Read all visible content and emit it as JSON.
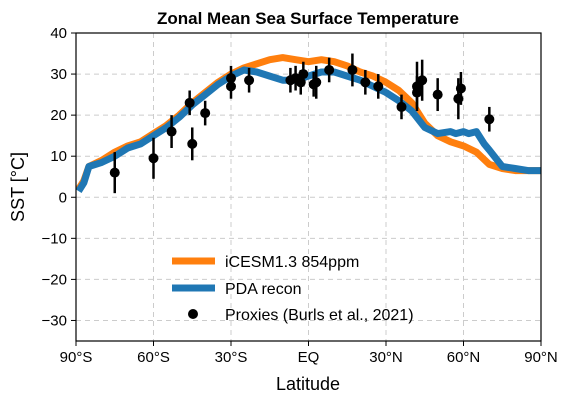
{
  "chart_data": {
    "type": "line",
    "title": "Zonal Mean Sea Surface Temperature",
    "xlabel": "Latitude",
    "ylabel": "SST [°C]",
    "xlim": [
      -90,
      90
    ],
    "ylim": [
      -35,
      40
    ],
    "x_ticks": [
      -90,
      -60,
      -30,
      0,
      30,
      60,
      90
    ],
    "x_tick_labels": [
      "90°S",
      "60°S",
      "30°S",
      "EQ",
      "30°N",
      "60°N",
      "90°N"
    ],
    "y_ticks": [
      -30,
      -20,
      -10,
      0,
      10,
      20,
      30,
      40
    ],
    "y_tick_labels": [
      "−30",
      "−20",
      "−10",
      "0",
      "10",
      "20",
      "30",
      "40"
    ],
    "grid": true,
    "legend_position": "lower-center",
    "series": [
      {
        "name": "iCESM1.3 854ppm",
        "color": "#ff7f0e",
        "x": [
          -89,
          -87,
          -85,
          -80,
          -75,
          -70,
          -65,
          -60,
          -55,
          -50,
          -45,
          -40,
          -35,
          -30,
          -25,
          -20,
          -15,
          -10,
          -5,
          0,
          5,
          10,
          15,
          20,
          25,
          30,
          35,
          40,
          45,
          50,
          55,
          60,
          65,
          70,
          75,
          80,
          85,
          90
        ],
        "y": [
          2,
          4,
          7.5,
          9,
          11,
          12.5,
          13.5,
          15.5,
          17.5,
          20,
          23,
          25.5,
          28,
          30,
          31.5,
          32.5,
          33.5,
          34,
          33.5,
          33,
          33.5,
          33,
          32,
          30.5,
          29.5,
          28,
          26,
          23,
          18,
          15,
          13.5,
          12.5,
          11,
          8,
          7,
          6.5,
          6.5,
          6.5
        ]
      },
      {
        "name": "PDA recon",
        "color": "#1f77b4",
        "x": [
          -89,
          -87,
          -85,
          -80,
          -75,
          -70,
          -65,
          -60,
          -55,
          -50,
          -45,
          -40,
          -35,
          -30,
          -25,
          -20,
          -15,
          -10,
          -5,
          0,
          5,
          10,
          15,
          20,
          25,
          30,
          35,
          40,
          45,
          50,
          55,
          57,
          60,
          62,
          65,
          68,
          70,
          75,
          80,
          85,
          90
        ],
        "y": [
          1.5,
          3.5,
          7.5,
          8.5,
          10,
          12,
          13,
          15,
          17,
          19.5,
          22.5,
          25,
          27.5,
          29.5,
          31,
          30.5,
          29.5,
          28.5,
          28.5,
          29.5,
          30.5,
          30.5,
          29.5,
          28.5,
          27,
          25.5,
          23.5,
          21,
          17,
          15.5,
          16,
          15.5,
          16,
          15.5,
          16,
          13,
          11.5,
          7.5,
          7,
          6.5,
          6.5
        ]
      }
    ],
    "proxies": {
      "name": "Proxies (Burls et al., 2021)",
      "color": "#000000",
      "points": [
        {
          "x": -75,
          "y": 6,
          "err": 5
        },
        {
          "x": -60,
          "y": 9.5,
          "err": 5
        },
        {
          "x": -53,
          "y": 16,
          "err": 4
        },
        {
          "x": -46,
          "y": 23,
          "err": 3
        },
        {
          "x": -45,
          "y": 13,
          "err": 4
        },
        {
          "x": -40,
          "y": 20.5,
          "err": 3
        },
        {
          "x": -30,
          "y": 27,
          "err": 3
        },
        {
          "x": -30,
          "y": 29,
          "err": 3
        },
        {
          "x": -23,
          "y": 28.5,
          "err": 3
        },
        {
          "x": -7,
          "y": 28.5,
          "err": 3
        },
        {
          "x": -5,
          "y": 29,
          "err": 3
        },
        {
          "x": -3,
          "y": 28,
          "err": 3
        },
        {
          "x": -2,
          "y": 30,
          "err": 3
        },
        {
          "x": 2,
          "y": 27.5,
          "err": 3
        },
        {
          "x": 3,
          "y": 28,
          "err": 4
        },
        {
          "x": 8,
          "y": 31,
          "err": 3
        },
        {
          "x": 17,
          "y": 31,
          "err": 4
        },
        {
          "x": 22,
          "y": 28,
          "err": 3
        },
        {
          "x": 27,
          "y": 27,
          "err": 3
        },
        {
          "x": 36,
          "y": 22,
          "err": 3
        },
        {
          "x": 42,
          "y": 27,
          "err": 6
        },
        {
          "x": 42,
          "y": 25.5,
          "err": 4
        },
        {
          "x": 44,
          "y": 28.5,
          "err": 5
        },
        {
          "x": 50,
          "y": 25,
          "err": 4
        },
        {
          "x": 58,
          "y": 24,
          "err": 5
        },
        {
          "x": 59,
          "y": 26.5,
          "err": 4
        },
        {
          "x": 70,
          "y": 19,
          "err": 3
        }
      ]
    }
  }
}
